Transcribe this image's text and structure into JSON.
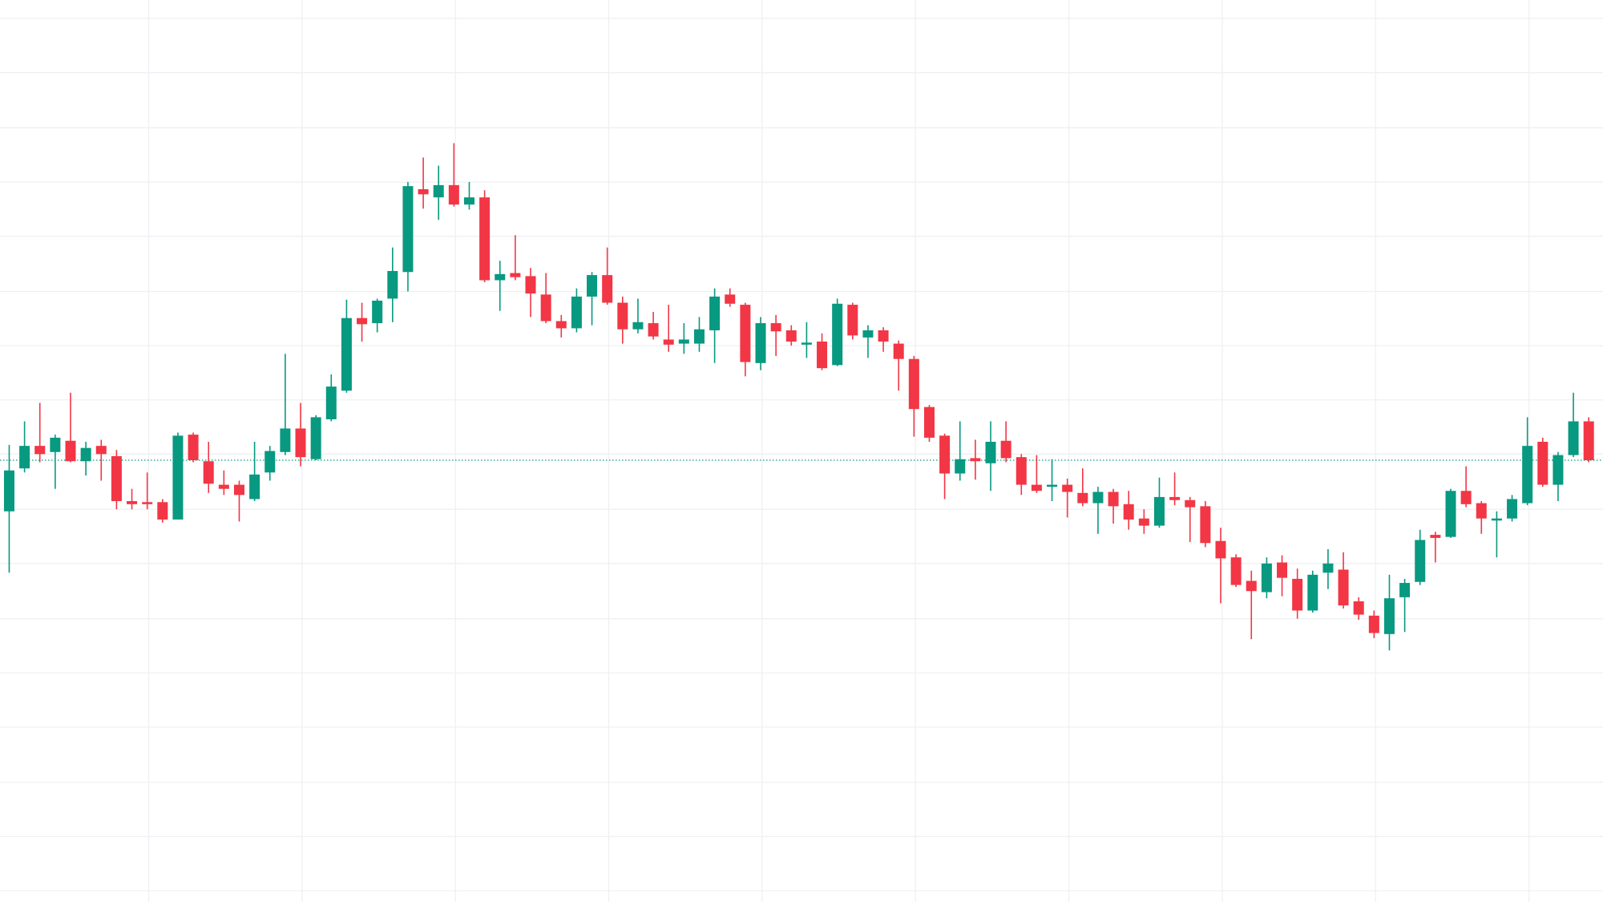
{
  "chart_data": {
    "type": "candlestick",
    "x": [
      0,
      1,
      2,
      3,
      4,
      5,
      6,
      7,
      8,
      9,
      10,
      11,
      12,
      13,
      14,
      15,
      16,
      17,
      18,
      19,
      20,
      21,
      22,
      23,
      24,
      25,
      26,
      27,
      28,
      29,
      30,
      31,
      32,
      33,
      34,
      35,
      36,
      37,
      38,
      39,
      40,
      41,
      42,
      43,
      44,
      45,
      46,
      47,
      48,
      49,
      50,
      51,
      52,
      53,
      54,
      55,
      56,
      57,
      58,
      59,
      60,
      61,
      62,
      63,
      64,
      65,
      66,
      67,
      68,
      69,
      70,
      71,
      72,
      73,
      74,
      75,
      76,
      77,
      78,
      79,
      80,
      81,
      82,
      83,
      84,
      85,
      86,
      87,
      88,
      89,
      90,
      91,
      92,
      93,
      94,
      95,
      96,
      97,
      98,
      99,
      100,
      101,
      102,
      103
    ],
    "open": [
      382,
      424,
      446,
      440,
      451,
      431,
      446,
      436,
      392,
      391,
      391,
      374,
      457,
      431,
      408,
      408,
      394,
      420,
      440,
      463,
      433,
      472,
      500,
      571,
      566,
      590,
      616,
      697,
      689,
      701,
      682,
      689,
      608,
      615,
      612,
      594,
      568,
      561,
      592,
      613,
      586,
      560,
      566,
      550,
      546,
      546,
      559,
      594,
      584,
      527,
      566,
      559,
      545,
      548,
      525,
      584,
      552,
      559,
      546,
      531,
      484,
      456,
      419,
      434,
      429,
      451,
      435,
      408,
      406,
      408,
      400,
      390,
      401,
      389,
      375,
      368,
      396,
      393,
      387,
      353,
      337,
      314,
      303,
      332,
      316,
      285,
      322,
      325,
      294,
      280,
      262,
      298,
      313,
      359,
      357,
      402,
      390,
      373,
      375,
      390,
      450,
      408,
      437,
      470
    ],
    "high": [
      447,
      470,
      488,
      457,
      498,
      450,
      452,
      442,
      404,
      420,
      394,
      459,
      459,
      450,
      422,
      412,
      450,
      446,
      536,
      488,
      476,
      516,
      589,
      586,
      590,
      640,
      704,
      728,
      720,
      742,
      704,
      696,
      627,
      652,
      620,
      615,
      574,
      600,
      616,
      640,
      592,
      590,
      577,
      584,
      566,
      572,
      600,
      600,
      586,
      572,
      574,
      564,
      567,
      556,
      590,
      586,
      564,
      562,
      549,
      534,
      486,
      458,
      470,
      452,
      470,
      470,
      438,
      437,
      433,
      414,
      424,
      406,
      404,
      402,
      384,
      415,
      420,
      396,
      392,
      366,
      340,
      324,
      337,
      339,
      326,
      324,
      345,
      342,
      298,
      285,
      320,
      316,
      364,
      362,
      404,
      426,
      392,
      382,
      398,
      474,
      454,
      440,
      498,
      474
    ],
    "low": [
      322,
      420,
      430,
      404,
      430,
      417,
      412,
      384,
      384,
      384,
      371,
      374,
      430,
      400,
      398,
      372,
      392,
      412,
      437,
      426,
      432,
      470,
      498,
      548,
      557,
      567,
      597,
      678,
      667,
      680,
      677,
      606,
      578,
      608,
      572,
      566,
      552,
      557,
      564,
      584,
      546,
      556,
      550,
      538,
      536,
      538,
      527,
      582,
      514,
      520,
      534,
      544,
      532,
      520,
      524,
      550,
      532,
      538,
      500,
      455,
      450,
      394,
      412,
      413,
      402,
      430,
      398,
      400,
      392,
      376,
      387,
      360,
      370,
      364,
      360,
      366,
      388,
      352,
      347,
      292,
      308,
      257,
      297,
      299,
      277,
      283,
      306,
      287,
      276,
      258,
      246,
      264,
      310,
      332,
      356,
      386,
      360,
      337,
      372,
      388,
      406,
      392,
      435,
      430
    ],
    "close": [
      422,
      446,
      438,
      454,
      431,
      444,
      438,
      392,
      389,
      389,
      374,
      456,
      432,
      409,
      404,
      398,
      418,
      441,
      463,
      435,
      474,
      504,
      571,
      565,
      588,
      617,
      700,
      692,
      701,
      682,
      689,
      608,
      614,
      611,
      595,
      568,
      561,
      592,
      613,
      586,
      560,
      567,
      553,
      545,
      550,
      560,
      592,
      585,
      528,
      566,
      558,
      548,
      547,
      522,
      585,
      554,
      559,
      548,
      531,
      482,
      454,
      419,
      433,
      431,
      450,
      434,
      408,
      402,
      408,
      401,
      390,
      401,
      387,
      374,
      368,
      396,
      393,
      386,
      351,
      336,
      310,
      304,
      331,
      317,
      285,
      320,
      331,
      290,
      281,
      263,
      297,
      312,
      354,
      356,
      402,
      389,
      375,
      375,
      394,
      446,
      408,
      437,
      470,
      432
    ],
    "xlim": [
      -0.6,
      103.93
    ],
    "ylim": [
      0,
      882
    ],
    "xticks": [
      9.1,
      19.1,
      29.1,
      39.1,
      49.1,
      59.1,
      69.1,
      79.1,
      89.1,
      99.1
    ],
    "yticks": [
      864,
      811,
      757,
      704,
      651,
      597,
      544,
      491,
      438,
      384,
      331,
      277,
      224,
      171,
      117,
      64,
      11
    ],
    "grid": true,
    "up_color": "#089981",
    "down_color": "#f23645",
    "price_line": true,
    "price_line_color": "#089981"
  }
}
